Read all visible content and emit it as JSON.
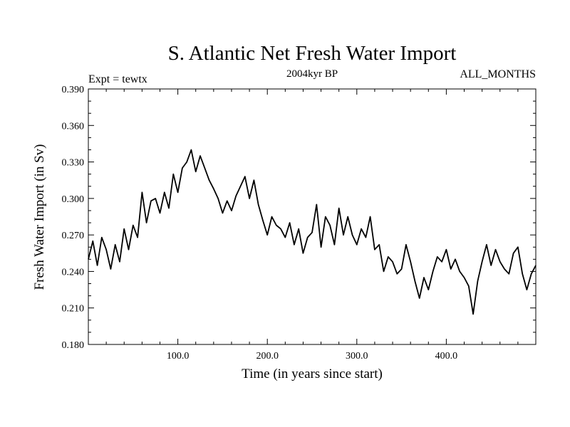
{
  "chart_data": {
    "type": "line",
    "title": "S. Atlantic Net Fresh Water Import",
    "subtitle": "2004kyr BP",
    "experiment_label": "Expt = tewtx",
    "months_label": "ALL_MONTHS",
    "xlabel": "Time (in years since start)",
    "ylabel": "Fresh Water Import (in Sv)",
    "xlim": [
      0,
      500
    ],
    "ylim": [
      0.18,
      0.39
    ],
    "xticks": [
      100,
      200,
      300,
      400
    ],
    "xtick_labels": [
      "100.0",
      "200.0",
      "300.0",
      "400.0"
    ],
    "yticks": [
      0.18,
      0.21,
      0.24,
      0.27,
      0.3,
      0.33,
      0.36,
      0.39
    ],
    "ytick_labels": [
      "0.180",
      "0.210",
      "0.240",
      "0.270",
      "0.300",
      "0.330",
      "0.360",
      "0.390"
    ],
    "grid": false,
    "line_color": "#000000",
    "series": [
      {
        "name": "Net fresh water import",
        "x": [
          0,
          5,
          10,
          15,
          20,
          25,
          30,
          35,
          40,
          45,
          50,
          55,
          60,
          65,
          70,
          75,
          80,
          85,
          90,
          95,
          100,
          105,
          110,
          115,
          120,
          125,
          130,
          135,
          140,
          145,
          150,
          155,
          160,
          165,
          170,
          175,
          180,
          185,
          190,
          195,
          200,
          205,
          210,
          215,
          220,
          225,
          230,
          235,
          240,
          245,
          250,
          255,
          260,
          265,
          270,
          275,
          280,
          285,
          290,
          295,
          300,
          305,
          310,
          315,
          320,
          325,
          330,
          335,
          340,
          345,
          350,
          355,
          360,
          365,
          370,
          375,
          380,
          385,
          390,
          395,
          400,
          405,
          410,
          415,
          420,
          425,
          430,
          435,
          440,
          445,
          450,
          455,
          460,
          465,
          470,
          475,
          480,
          485,
          490,
          495,
          500
        ],
        "y": [
          0.25,
          0.265,
          0.245,
          0.268,
          0.258,
          0.242,
          0.262,
          0.248,
          0.275,
          0.258,
          0.278,
          0.268,
          0.305,
          0.28,
          0.298,
          0.3,
          0.288,
          0.305,
          0.292,
          0.32,
          0.305,
          0.325,
          0.33,
          0.34,
          0.322,
          0.335,
          0.325,
          0.315,
          0.308,
          0.3,
          0.288,
          0.298,
          0.29,
          0.302,
          0.31,
          0.318,
          0.3,
          0.315,
          0.295,
          0.282,
          0.27,
          0.285,
          0.278,
          0.275,
          0.268,
          0.28,
          0.262,
          0.275,
          0.255,
          0.268,
          0.272,
          0.295,
          0.26,
          0.285,
          0.278,
          0.262,
          0.292,
          0.27,
          0.285,
          0.27,
          0.262,
          0.275,
          0.268,
          0.285,
          0.258,
          0.262,
          0.24,
          0.252,
          0.248,
          0.238,
          0.242,
          0.262,
          0.248,
          0.232,
          0.218,
          0.235,
          0.225,
          0.24,
          0.252,
          0.248,
          0.258,
          0.242,
          0.25,
          0.24,
          0.235,
          0.228,
          0.205,
          0.232,
          0.248,
          0.262,
          0.245,
          0.258,
          0.248,
          0.242,
          0.238,
          0.255,
          0.26,
          0.238,
          0.225,
          0.238,
          0.245
        ]
      }
    ]
  }
}
